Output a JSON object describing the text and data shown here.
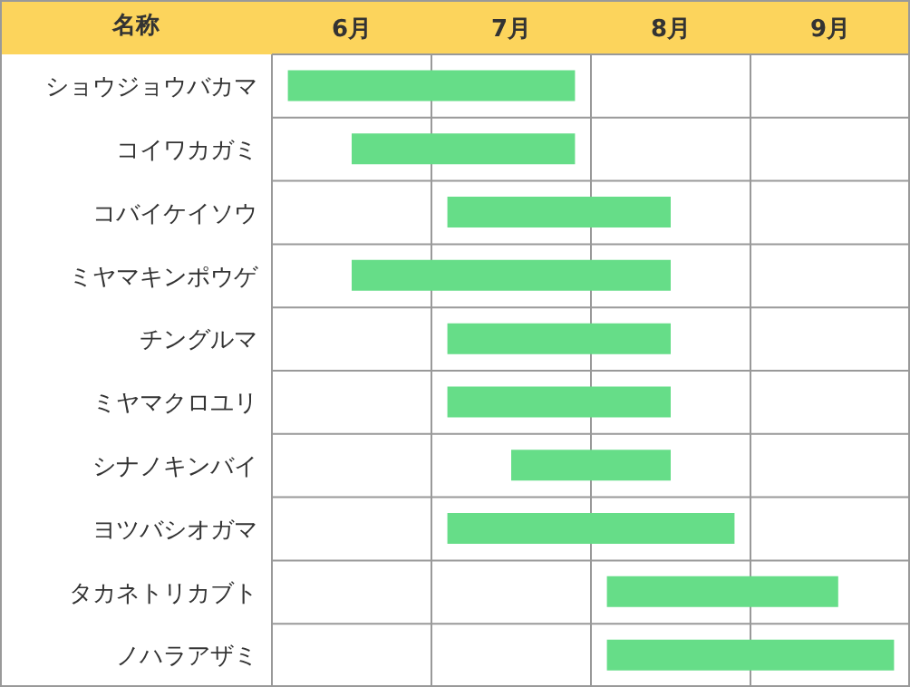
{
  "chart_data": {
    "type": "bar",
    "orientation": "horizontal",
    "ylabel": "名称",
    "categories": [
      "ショウジョウバカマ",
      "コイワカガミ",
      "コバイケイソウ",
      "ミヤマキンポウゲ",
      "チングルマ",
      "ミヤマクロユリ",
      "シナノキンバイ",
      "ヨツバシオガマ",
      "タカネトリカブト",
      "ノハラアザミ"
    ],
    "base": [
      6.1,
      6.5,
      7.1,
      6.5,
      7.1,
      7.1,
      7.5,
      7.1,
      8.1,
      8.1
    ],
    "values": [
      1.8,
      1.4,
      1.4,
      2.0,
      1.4,
      1.4,
      1.0,
      1.8,
      1.45,
      1.8
    ],
    "color": "#66dd88",
    "xlim": [
      6,
      10
    ],
    "xticks": [
      {
        "value": 6,
        "label": null
      },
      {
        "value": 6.5,
        "label": "6月"
      },
      {
        "value": 7,
        "label": null
      },
      {
        "value": 7.5,
        "label": "7月"
      },
      {
        "value": 8,
        "label": null
      },
      {
        "value": 8.5,
        "label": "8月"
      },
      {
        "value": 9,
        "label": null
      },
      {
        "value": 9.5,
        "label": "9月"
      },
      {
        "value": 10,
        "label": null
      }
    ],
    "grid": "x"
  }
}
